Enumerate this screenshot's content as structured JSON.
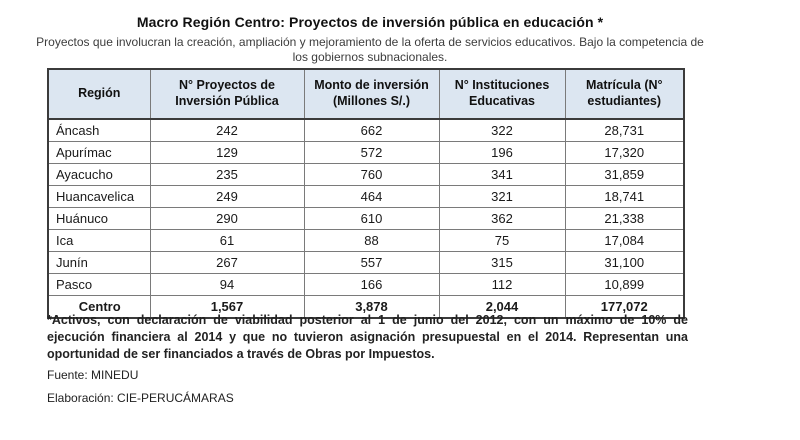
{
  "title": "Macro Región Centro: Proyectos de inversión pública en educación *",
  "subtitle": "Proyectos que involucran la creación, ampliación y mejoramiento de la oferta de servicios educativos. Bajo la competencia de los gobiernos subnacionales.",
  "chart_data": {
    "type": "table",
    "title": "Macro Región Centro: Proyectos de inversión pública en educación *",
    "columns": [
      "Región",
      "N° Proyectos de Inversión Pública",
      "Monto de inversión (Millones S/.)",
      "N° Instituciones Educativas",
      "Matrícula (N° estudiantes)"
    ],
    "rows": [
      {
        "region": "Áncash",
        "proyectos": "242",
        "monto": "662",
        "instituciones": "322",
        "matricula": "28,731"
      },
      {
        "region": "Apurímac",
        "proyectos": "129",
        "monto": "572",
        "instituciones": "196",
        "matricula": "17,320"
      },
      {
        "region": "Ayacucho",
        "proyectos": "235",
        "monto": "760",
        "instituciones": "341",
        "matricula": "31,859"
      },
      {
        "region": "Huancavelica",
        "proyectos": "249",
        "monto": "464",
        "instituciones": "321",
        "matricula": "18,741"
      },
      {
        "region": "Huánuco",
        "proyectos": "290",
        "monto": "610",
        "instituciones": "362",
        "matricula": "21,338"
      },
      {
        "region": "Ica",
        "proyectos": "61",
        "monto": "88",
        "instituciones": "75",
        "matricula": "17,084"
      },
      {
        "region": "Junín",
        "proyectos": "267",
        "monto": "557",
        "instituciones": "315",
        "matricula": "31,100"
      },
      {
        "region": "Pasco",
        "proyectos": "94",
        "monto": "166",
        "instituciones": "112",
        "matricula": "10,899"
      }
    ],
    "total": {
      "region": "Centro",
      "proyectos": "1,567",
      "monto": "3,878",
      "instituciones": "2,044",
      "matricula": "177,072"
    }
  },
  "footnote": "*Activos, con declaración de viabilidad posterior al 1 de junio del 2012, con un máximo de 10% de ejecución financiera al 2014 y que no tuvieron asignación presupuestal en el 2014. Representan una oportunidad de ser financiados a través de Obras por Impuestos.",
  "source": "Fuente: MINEDU",
  "elaboration": "Elaboración: CIE-PERUCÁMARAS",
  "colors": {
    "header_bg": "#DCE6F1",
    "border_outer": "#3B3B3B",
    "border_inner": "#7A7A7A",
    "text": "#1A1A1A"
  }
}
